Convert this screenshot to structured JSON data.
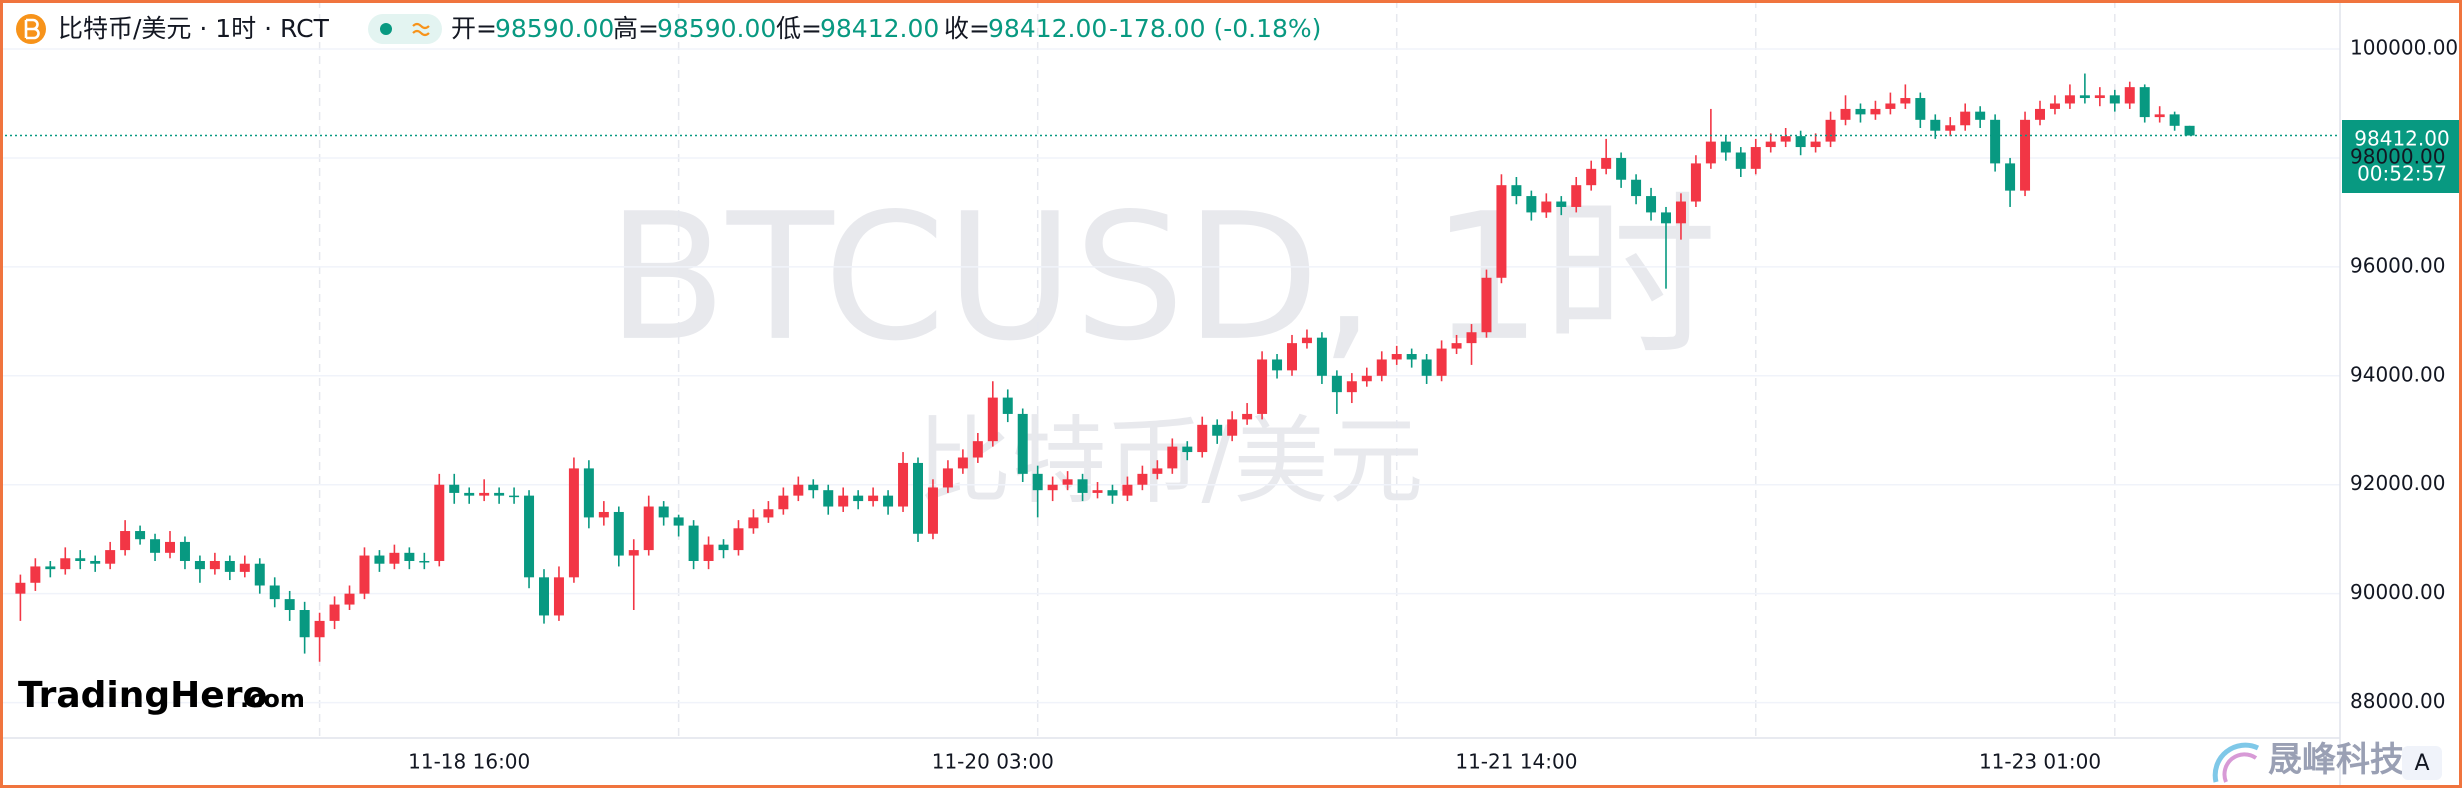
{
  "chart_data": {
    "type": "candlestick",
    "legend": {
      "symbol": "比特币/美元 · 1时 · RCT",
      "open_label": "开=",
      "open": "98590.00",
      "high_label": "高=",
      "high": "98590.00",
      "low_label": "低=",
      "low": "98412.00",
      "close_label": "收=",
      "close": "98412.00",
      "change": "-178.00 (-0.18%)"
    },
    "watermark": {
      "main": "BTCUSD, 1时",
      "sub": "比特币/美元"
    },
    "logo": {
      "name": "TradingHero",
      "suffix": ".com"
    },
    "brand": "晟峰科技",
    "button": "A",
    "price_tag": {
      "price": "98412.00",
      "countdown": "00:52:57"
    },
    "up_color": "#f23645",
    "down_color": "#089981",
    "grid": true,
    "ylim": [
      87350,
      100900
    ],
    "yticks": [
      {
        "value": 88000,
        "label": "88000.00"
      },
      {
        "value": 90000,
        "label": "90000.00"
      },
      {
        "value": 92000,
        "label": "92000.00"
      },
      {
        "value": 94000,
        "label": "94000.00"
      },
      {
        "value": 96000,
        "label": "96000.00"
      },
      {
        "value": 98000,
        "label": "98000.00"
      },
      {
        "value": 100000,
        "label": "100000.00"
      }
    ],
    "categories": [
      null,
      null,
      null,
      null,
      null,
      null,
      null,
      null,
      null,
      null,
      null,
      null,
      null,
      null,
      null,
      null,
      null,
      null,
      null,
      null,
      null,
      null,
      null,
      null,
      null,
      null,
      null,
      null,
      null,
      null,
      "11-18 16:00",
      null,
      null,
      null,
      null,
      null,
      null,
      null,
      null,
      null,
      null,
      null,
      null,
      null,
      null,
      null,
      null,
      null,
      null,
      null,
      null,
      null,
      null,
      null,
      null,
      null,
      null,
      null,
      null,
      null,
      null,
      null,
      null,
      null,
      null,
      "11-20 03:00",
      null,
      null,
      null,
      null,
      null,
      null,
      null,
      null,
      null,
      null,
      null,
      null,
      null,
      null,
      null,
      null,
      null,
      null,
      null,
      null,
      null,
      null,
      null,
      null,
      null,
      null,
      null,
      null,
      null,
      null,
      null,
      null,
      null,
      null,
      "11-21 14:00",
      null,
      null,
      null,
      null,
      null,
      null,
      null,
      null,
      null,
      null,
      null,
      null,
      null,
      null,
      null,
      null,
      null,
      null,
      null,
      null,
      null,
      null,
      null,
      null,
      null,
      null,
      null,
      null,
      null,
      null,
      null,
      null,
      null,
      null,
      "11-23 01:00",
      null,
      null,
      null,
      null,
      null,
      null,
      null,
      null,
      null,
      null
    ],
    "ohlc": [
      [
        90000,
        90350,
        89500,
        90200
      ],
      [
        90200,
        90650,
        90050,
        90500
      ],
      [
        90500,
        90600,
        90300,
        90450
      ],
      [
        90450,
        90850,
        90350,
        90650
      ],
      [
        90650,
        90800,
        90450,
        90600
      ],
      [
        90600,
        90700,
        90400,
        90550
      ],
      [
        90550,
        90950,
        90450,
        90800
      ],
      [
        90800,
        91350,
        90700,
        91150
      ],
      [
        91150,
        91250,
        90900,
        91000
      ],
      [
        91000,
        91100,
        90600,
        90750
      ],
      [
        90750,
        91150,
        90650,
        90950
      ],
      [
        90950,
        91050,
        90450,
        90600
      ],
      [
        90600,
        90700,
        90200,
        90450
      ],
      [
        90450,
        90750,
        90350,
        90600
      ],
      [
        90600,
        90700,
        90250,
        90400
      ],
      [
        90400,
        90700,
        90300,
        90550
      ],
      [
        90550,
        90650,
        90000,
        90150
      ],
      [
        90150,
        90300,
        89750,
        89900
      ],
      [
        89900,
        90050,
        89500,
        89700
      ],
      [
        89700,
        89850,
        88900,
        89200
      ],
      [
        89200,
        89650,
        88750,
        89500
      ],
      [
        89500,
        89950,
        89350,
        89800
      ],
      [
        89800,
        90150,
        89700,
        90000
      ],
      [
        90000,
        90850,
        89900,
        90700
      ],
      [
        90700,
        90800,
        90400,
        90550
      ],
      [
        90550,
        90900,
        90450,
        90750
      ],
      [
        90750,
        90850,
        90450,
        90600
      ],
      [
        90600,
        90750,
        90450,
        90600
      ],
      [
        90600,
        92200,
        90500,
        92000
      ],
      [
        92000,
        92200,
        91650,
        91850
      ],
      [
        91850,
        91950,
        91650,
        91800
      ],
      [
        91800,
        92100,
        91700,
        91850
      ],
      [
        91850,
        91950,
        91650,
        91800
      ],
      [
        91800,
        91950,
        91650,
        91800
      ],
      [
        91800,
        91900,
        90100,
        90300
      ],
      [
        90300,
        90450,
        89450,
        89600
      ],
      [
        89600,
        90500,
        89500,
        90300
      ],
      [
        90300,
        92500,
        90200,
        92300
      ],
      [
        92300,
        92450,
        91200,
        91400
      ],
      [
        91400,
        91700,
        91250,
        91500
      ],
      [
        91500,
        91600,
        90500,
        90700
      ],
      [
        90700,
        91000,
        89700,
        90800
      ],
      [
        90800,
        91800,
        90700,
        91600
      ],
      [
        91600,
        91700,
        91250,
        91400
      ],
      [
        91400,
        91450,
        91050,
        91250
      ],
      [
        91250,
        91350,
        90450,
        90600
      ],
      [
        90600,
        91050,
        90450,
        90900
      ],
      [
        90900,
        91000,
        90650,
        90800
      ],
      [
        90800,
        91350,
        90700,
        91200
      ],
      [
        91200,
        91550,
        91100,
        91400
      ],
      [
        91400,
        91700,
        91300,
        91550
      ],
      [
        91550,
        91950,
        91450,
        91800
      ],
      [
        91800,
        92150,
        91700,
        92000
      ],
      [
        92000,
        92100,
        91750,
        91900
      ],
      [
        91900,
        92000,
        91450,
        91600
      ],
      [
        91600,
        91950,
        91500,
        91800
      ],
      [
        91800,
        91900,
        91550,
        91700
      ],
      [
        91700,
        91950,
        91600,
        91800
      ],
      [
        91800,
        91900,
        91450,
        91600
      ],
      [
        91600,
        92600,
        91500,
        92400
      ],
      [
        92400,
        92500,
        90950,
        91100
      ],
      [
        91100,
        92100,
        91000,
        91950
      ],
      [
        91950,
        92450,
        91850,
        92300
      ],
      [
        92300,
        92650,
        92200,
        92500
      ],
      [
        92500,
        92950,
        92400,
        92800
      ],
      [
        92800,
        93900,
        92700,
        93600
      ],
      [
        93600,
        93750,
        93150,
        93300
      ],
      [
        93300,
        93400,
        92050,
        92200
      ],
      [
        92200,
        92350,
        91400,
        91900
      ],
      [
        91900,
        92150,
        91700,
        92000
      ],
      [
        92000,
        92250,
        91900,
        92100
      ],
      [
        92100,
        92200,
        91700,
        91850
      ],
      [
        91850,
        92050,
        91750,
        91900
      ],
      [
        91900,
        92000,
        91650,
        91800
      ],
      [
        91800,
        92150,
        91700,
        92000
      ],
      [
        92000,
        92350,
        91900,
        92200
      ],
      [
        92200,
        92450,
        92100,
        92300
      ],
      [
        92300,
        92850,
        92200,
        92700
      ],
      [
        92700,
        92800,
        92450,
        92600
      ],
      [
        92600,
        93250,
        92500,
        93100
      ],
      [
        93100,
        93200,
        92750,
        92900
      ],
      [
        92900,
        93350,
        92800,
        93200
      ],
      [
        93200,
        93500,
        93100,
        93300
      ],
      [
        93300,
        94450,
        93200,
        94300
      ],
      [
        94300,
        94400,
        93950,
        94100
      ],
      [
        94100,
        94750,
        94000,
        94600
      ],
      [
        94600,
        94850,
        94500,
        94700
      ],
      [
        94700,
        94800,
        93850,
        94000
      ],
      [
        94000,
        94100,
        93300,
        93700
      ],
      [
        93700,
        94050,
        93500,
        93900
      ],
      [
        93900,
        94150,
        93800,
        94000
      ],
      [
        94000,
        94450,
        93900,
        94300
      ],
      [
        94300,
        94550,
        94200,
        94400
      ],
      [
        94400,
        94500,
        94150,
        94300
      ],
      [
        94300,
        94400,
        93850,
        94000
      ],
      [
        94000,
        94650,
        93900,
        94500
      ],
      [
        94500,
        94750,
        94400,
        94600
      ],
      [
        94600,
        94950,
        94200,
        94800
      ],
      [
        94800,
        95950,
        94700,
        95800
      ],
      [
        95800,
        97700,
        95700,
        97500
      ],
      [
        97500,
        97650,
        97150,
        97300
      ],
      [
        97300,
        97400,
        96850,
        97000
      ],
      [
        97000,
        97350,
        96900,
        97200
      ],
      [
        97200,
        97300,
        96950,
        97100
      ],
      [
        97100,
        97650,
        97000,
        97500
      ],
      [
        97500,
        97950,
        97400,
        97800
      ],
      [
        97800,
        98350,
        97700,
        98000
      ],
      [
        98000,
        98100,
        97450,
        97600
      ],
      [
        97600,
        97700,
        97150,
        97300
      ],
      [
        97300,
        97450,
        96850,
        97000
      ],
      [
        97000,
        97100,
        95600,
        96800
      ],
      [
        96800,
        97350,
        96500,
        97200
      ],
      [
        97200,
        98050,
        97100,
        97900
      ],
      [
        97900,
        98900,
        97800,
        98300
      ],
      [
        98300,
        98400,
        97950,
        98100
      ],
      [
        98100,
        98200,
        97650,
        97800
      ],
      [
        97800,
        98350,
        97700,
        98200
      ],
      [
        98200,
        98450,
        98100,
        98300
      ],
      [
        98300,
        98550,
        98200,
        98400
      ],
      [
        98400,
        98500,
        98050,
        98200
      ],
      [
        98200,
        98450,
        98100,
        98300
      ],
      [
        98300,
        98850,
        98200,
        98700
      ],
      [
        98700,
        99150,
        98600,
        98900
      ],
      [
        98900,
        99000,
        98650,
        98800
      ],
      [
        98800,
        99050,
        98700,
        98900
      ],
      [
        98900,
        99200,
        98800,
        99000
      ],
      [
        99000,
        99350,
        98900,
        99100
      ],
      [
        99100,
        99200,
        98550,
        98700
      ],
      [
        98700,
        98800,
        98350,
        98500
      ],
      [
        98500,
        98750,
        98400,
        98600
      ],
      [
        98600,
        99000,
        98500,
        98850
      ],
      [
        98850,
        98950,
        98550,
        98700
      ],
      [
        98700,
        98800,
        97750,
        97900
      ],
      [
        97900,
        98000,
        97100,
        97400
      ],
      [
        97400,
        98850,
        97300,
        98700
      ],
      [
        98700,
        99050,
        98600,
        98900
      ],
      [
        98900,
        99150,
        98800,
        99000
      ],
      [
        99000,
        99350,
        98900,
        99150
      ],
      [
        99150,
        99550,
        99000,
        99100
      ],
      [
        99100,
        99300,
        98950,
        99150
      ],
      [
        99150,
        99250,
        98850,
        99000
      ],
      [
        99000,
        99400,
        98900,
        99300
      ],
      [
        99300,
        99350,
        98650,
        98750
      ],
      [
        98750,
        98950,
        98650,
        98800
      ],
      [
        98800,
        98850,
        98500,
        98590
      ],
      [
        98590,
        98590,
        98412,
        98412
      ]
    ]
  }
}
